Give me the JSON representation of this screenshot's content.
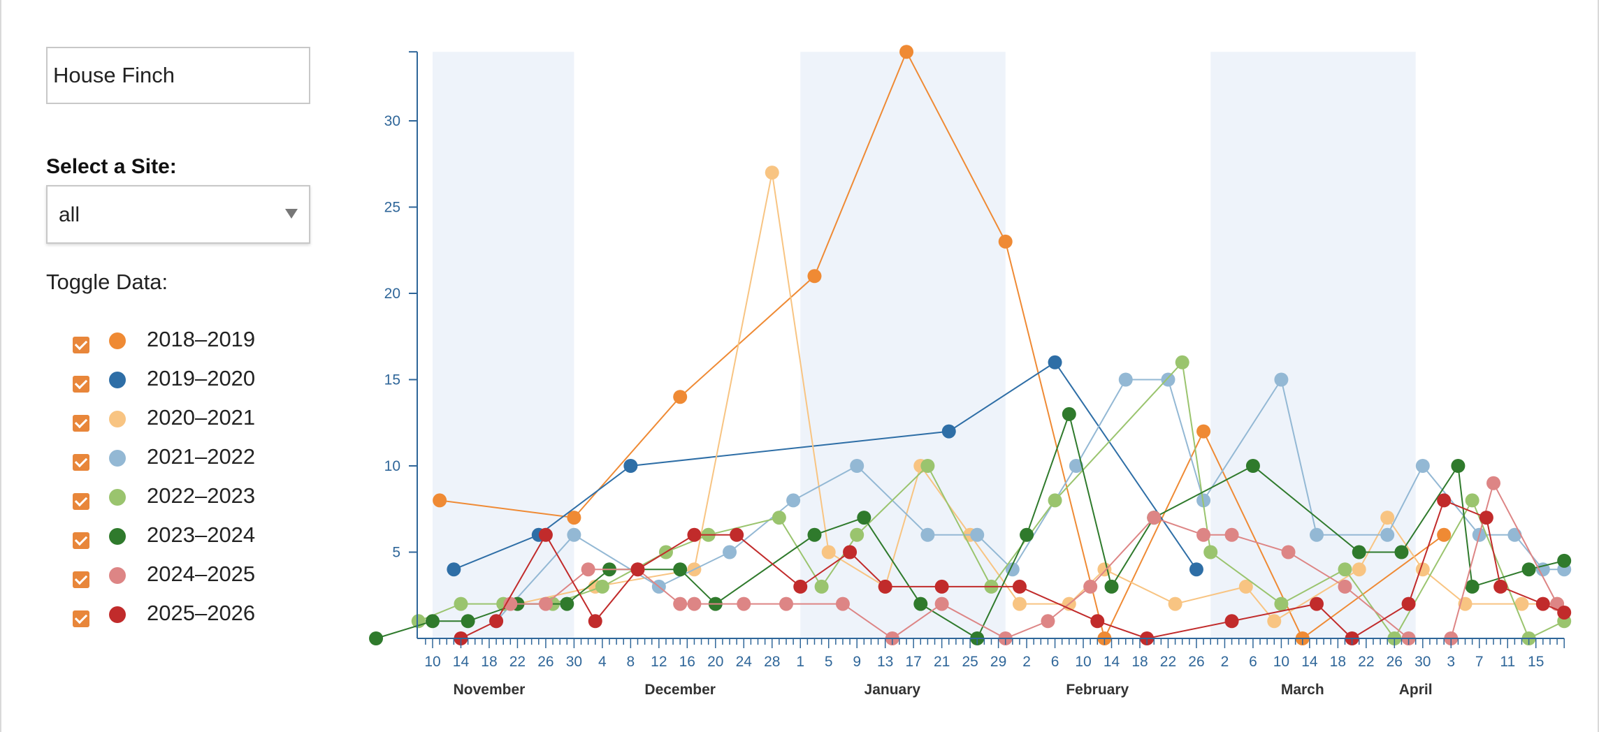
{
  "controls": {
    "species_value": "House Finch",
    "site_label": "Select a Site:",
    "site_value": "all",
    "toggle_label": "Toggle Data:"
  },
  "colors": {
    "checkbox": "#e8863a",
    "band": "#eef3fa",
    "axis": "#2f6699"
  },
  "legend": [
    {
      "label": "2018–2019",
      "color": "#ef8a34"
    },
    {
      "label": "2019–2020",
      "color": "#2e6ea6"
    },
    {
      "label": "2020–2021",
      "color": "#f8c482"
    },
    {
      "label": "2021–2022",
      "color": "#93b8d4"
    },
    {
      "label": "2022–2023",
      "color": "#9ac46e"
    },
    {
      "label": "2023–2024",
      "color": "#2f7a2c"
    },
    {
      "label": "2024–2025",
      "color": "#dd8585"
    },
    {
      "label": "2025–2026",
      "color": "#c12b2b"
    }
  ],
  "chart_data": {
    "type": "line",
    "x_axis": "date (season day; Nov 10 = first tick)",
    "ylim": [
      0,
      34
    ],
    "yticks": [
      5,
      10,
      15,
      20,
      25,
      30
    ],
    "xlim": [
      "Nov 10",
      "Apr 19"
    ],
    "x_tick_labels": [
      "10",
      "14",
      "18",
      "22",
      "26",
      "30",
      "4",
      "8",
      "12",
      "16",
      "20",
      "24",
      "28",
      "1",
      "5",
      "9",
      "13",
      "17",
      "21",
      "25",
      "29",
      "2",
      "6",
      "10",
      "14",
      "18",
      "22",
      "26",
      "2",
      "6",
      "10",
      "14",
      "18",
      "22",
      "26",
      "30",
      "3",
      "7",
      "11",
      "15"
    ],
    "x_tick_dates": [
      "Nov 10",
      "Nov 14",
      "Nov 18",
      "Nov 22",
      "Nov 26",
      "Nov 30",
      "Dec 4",
      "Dec 8",
      "Dec 12",
      "Dec 16",
      "Dec 20",
      "Dec 24",
      "Dec 28",
      "Jan 1",
      "Jan 5",
      "Jan 9",
      "Jan 13",
      "Jan 17",
      "Jan 21",
      "Jan 25",
      "Jan 29",
      "Feb 2",
      "Feb 6",
      "Feb 10",
      "Feb 14",
      "Feb 18",
      "Feb 22",
      "Feb 26",
      "Mar 2",
      "Mar 6",
      "Mar 10",
      "Mar 14",
      "Mar 18",
      "Mar 22",
      "Mar 26",
      "Mar 30",
      "Apr 3",
      "Apr 7",
      "Apr 11",
      "Apr 15"
    ],
    "months": [
      {
        "label": "November",
        "center": "Nov 18"
      },
      {
        "label": "December",
        "center": "Dec 15"
      },
      {
        "label": "January",
        "center": "Jan 14"
      },
      {
        "label": "February",
        "center": "Feb 12"
      },
      {
        "label": "March",
        "center": "Mar 13"
      },
      {
        "label": "April",
        "center": "Mar 29"
      }
    ],
    "bands": [
      [
        "Nov 10",
        "Nov 30"
      ],
      [
        "Jan 1",
        "Jan 30"
      ],
      [
        "Feb 28",
        "Mar 29"
      ]
    ],
    "series": [
      {
        "name": "2018–2019",
        "points": [
          [
            "Nov 11",
            8
          ],
          [
            "Nov 30",
            7
          ],
          [
            "Dec 15",
            14
          ],
          [
            "Jan 3",
            21
          ],
          [
            "Jan 16",
            34
          ],
          [
            "Jan 30",
            23
          ],
          [
            "Feb 13",
            0
          ],
          [
            "Feb 27",
            12
          ],
          [
            "Mar 13",
            0
          ],
          [
            "Apr 2",
            6
          ]
        ]
      },
      {
        "name": "2019–2020",
        "points": [
          [
            "Nov 13",
            4
          ],
          [
            "Nov 25",
            6
          ],
          [
            "Dec 8",
            10
          ],
          [
            "Jan 22",
            12
          ],
          [
            "Feb 6",
            16
          ],
          [
            "Feb 26",
            4
          ]
        ]
      },
      {
        "name": "2020–2021",
        "points": [
          [
            "Nov 22",
            2
          ],
          [
            "Dec 3",
            3
          ],
          [
            "Dec 17",
            4
          ],
          [
            "Dec 28",
            27
          ],
          [
            "Jan 5",
            5
          ],
          [
            "Jan 13",
            3
          ],
          [
            "Jan 18",
            10
          ],
          [
            "Jan 25",
            6
          ],
          [
            "Feb 1",
            2
          ],
          [
            "Feb 8",
            2
          ],
          [
            "Feb 13",
            4
          ],
          [
            "Feb 23",
            2
          ],
          [
            "Mar 5",
            3
          ],
          [
            "Mar 9",
            1
          ],
          [
            "Mar 21",
            4
          ],
          [
            "Mar 25",
            7
          ],
          [
            "Mar 30",
            4
          ],
          [
            "Apr 5",
            2
          ],
          [
            "Apr 13",
            2
          ],
          [
            "Apr 18",
            2
          ]
        ]
      },
      {
        "name": "2021–2022",
        "points": [
          [
            "Nov 19",
            1
          ],
          [
            "Nov 30",
            6
          ],
          [
            "Dec 12",
            3
          ],
          [
            "Dec 22",
            5
          ],
          [
            "Dec 31",
            8
          ],
          [
            "Jan 9",
            10
          ],
          [
            "Jan 19",
            6
          ],
          [
            "Jan 26",
            6
          ],
          [
            "Jan 31",
            4
          ],
          [
            "Feb 9",
            10
          ],
          [
            "Feb 16",
            15
          ],
          [
            "Feb 22",
            15
          ],
          [
            "Feb 27",
            8
          ],
          [
            "Mar 10",
            15
          ],
          [
            "Mar 15",
            6
          ],
          [
            "Mar 25",
            6
          ],
          [
            "Mar 30",
            10
          ],
          [
            "Apr 7",
            6
          ],
          [
            "Apr 12",
            6
          ],
          [
            "Apr 16",
            4
          ],
          [
            "Apr 19",
            4
          ]
        ]
      },
      {
        "name": "2022–2023",
        "points": [
          [
            "Nov 8",
            1
          ],
          [
            "Nov 14",
            2
          ],
          [
            "Nov 20",
            2
          ],
          [
            "Nov 27",
            2
          ],
          [
            "Dec 4",
            3
          ],
          [
            "Dec 13",
            5
          ],
          [
            "Dec 19",
            6
          ],
          [
            "Dec 29",
            7
          ],
          [
            "Jan 4",
            3
          ],
          [
            "Jan 9",
            6
          ],
          [
            "Jan 19",
            10
          ],
          [
            "Jan 28",
            3
          ],
          [
            "Feb 6",
            8
          ],
          [
            "Feb 24",
            16
          ],
          [
            "Feb 28",
            5
          ],
          [
            "Mar 10",
            2
          ],
          [
            "Mar 19",
            4
          ],
          [
            "Mar 26",
            0
          ],
          [
            "Apr 6",
            8
          ],
          [
            "Apr 14",
            0
          ],
          [
            "Apr 19",
            1
          ]
        ]
      },
      {
        "name": "2023–2024",
        "points": [
          [
            "Nov 2",
            0
          ],
          [
            "Nov 10",
            1
          ],
          [
            "Nov 15",
            1
          ],
          [
            "Nov 22",
            2
          ],
          [
            "Nov 29",
            2
          ],
          [
            "Dec 5",
            4
          ],
          [
            "Dec 15",
            4
          ],
          [
            "Dec 20",
            2
          ],
          [
            "Jan 3",
            6
          ],
          [
            "Jan 10",
            7
          ],
          [
            "Jan 18",
            2
          ],
          [
            "Jan 26",
            0
          ],
          [
            "Feb 2",
            6
          ],
          [
            "Feb 8",
            13
          ],
          [
            "Feb 14",
            3
          ],
          [
            "Feb 20",
            7
          ],
          [
            "Mar 6",
            10
          ],
          [
            "Mar 21",
            5
          ],
          [
            "Mar 27",
            5
          ],
          [
            "Apr 4",
            10
          ],
          [
            "Apr 6",
            3
          ],
          [
            "Apr 14",
            4
          ],
          [
            "Apr 19",
            4.5
          ]
        ]
      },
      {
        "name": "2024–2025",
        "points": [
          [
            "Nov 21",
            2
          ],
          [
            "Nov 26",
            2
          ],
          [
            "Dec 2",
            4
          ],
          [
            "Dec 9",
            4
          ],
          [
            "Dec 15",
            2
          ],
          [
            "Dec 17",
            2
          ],
          [
            "Dec 24",
            2
          ],
          [
            "Dec 30",
            2
          ],
          [
            "Jan 7",
            2
          ],
          [
            "Jan 14",
            0
          ],
          [
            "Jan 21",
            2
          ],
          [
            "Jan 30",
            0
          ],
          [
            "Feb 5",
            1
          ],
          [
            "Feb 11",
            3
          ],
          [
            "Feb 20",
            7
          ],
          [
            "Feb 27",
            6
          ],
          [
            "Mar 3",
            6
          ],
          [
            "Mar 11",
            5
          ],
          [
            "Mar 19",
            3
          ],
          [
            "Mar 28",
            0
          ],
          [
            "Apr 3",
            0
          ],
          [
            "Apr 9",
            9
          ],
          [
            "Apr 18",
            2
          ]
        ]
      },
      {
        "name": "2025–2026",
        "points": [
          [
            "Nov 14",
            0
          ],
          [
            "Nov 19",
            1
          ],
          [
            "Nov 26",
            6
          ],
          [
            "Dec 3",
            1
          ],
          [
            "Dec 9",
            4
          ],
          [
            "Dec 17",
            6
          ],
          [
            "Dec 23",
            6
          ],
          [
            "Jan 1",
            3
          ],
          [
            "Jan 8",
            5
          ],
          [
            "Jan 13",
            3
          ],
          [
            "Jan 21",
            3
          ],
          [
            "Feb 1",
            3
          ],
          [
            "Feb 12",
            1
          ],
          [
            "Feb 19",
            0
          ],
          [
            "Mar 3",
            1
          ],
          [
            "Mar 15",
            2
          ],
          [
            "Mar 20",
            0
          ],
          [
            "Mar 28",
            2
          ],
          [
            "Apr 2",
            8
          ],
          [
            "Apr 8",
            7
          ],
          [
            "Apr 10",
            3
          ],
          [
            "Apr 16",
            2
          ],
          [
            "Apr 19",
            1.5
          ]
        ]
      }
    ]
  }
}
